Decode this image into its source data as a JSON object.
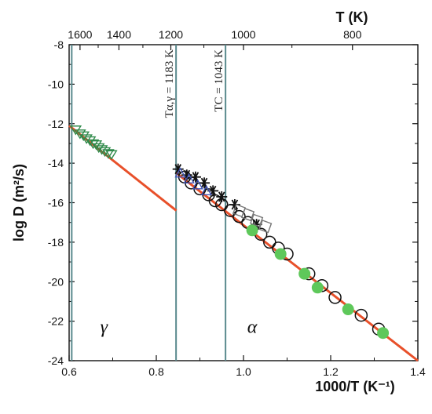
{
  "chart_data": {
    "type": "scatter",
    "xlabel": "1000/T (K⁻¹)",
    "ylabel": "log D (m²/s)",
    "top_axis_label": "T (K)",
    "xlim": [
      0.6,
      1.4
    ],
    "ylim": [
      -24,
      -8
    ],
    "x_ticks": [
      0.6,
      0.8,
      1.0,
      1.2,
      1.4
    ],
    "x_tick_labels": [
      "0.6",
      "0.8",
      "1.0",
      "1.2",
      "1.4"
    ],
    "y_ticks": [
      -24,
      -22,
      -20,
      -18,
      -16,
      -14,
      -12,
      -10,
      -8
    ],
    "y_tick_labels": [
      "-24",
      "-22",
      "-20",
      "-18",
      "-16",
      "-14",
      "-12",
      "-10",
      "-8"
    ],
    "top_ticks_T": [
      1600,
      1400,
      1200,
      1000,
      800
    ],
    "top_tick_labels": [
      "1600",
      "1400",
      "1200",
      "1000",
      "800"
    ],
    "vertical_lines": [
      {
        "x": 0.606,
        "label": ""
      },
      {
        "x": 0.8453,
        "label": "Tα,γ = 1183 K"
      },
      {
        "x": 0.9588,
        "label": "TC = 1043 K"
      }
    ],
    "phase_labels": [
      {
        "text": "γ",
        "x": 0.68,
        "y": -22.6
      },
      {
        "text": "α",
        "x": 1.02,
        "y": -22.6
      }
    ],
    "fit_lines": [
      {
        "name": "",
        "color": "#e8502a",
        "points": [
          [
            0.6,
            -12.1
          ],
          [
            0.846,
            -16.4
          ]
        ]
      },
      {
        "name": "",
        "color": "#e8502a",
        "points": [
          [
            0.846,
            -14.5
          ],
          [
            1.4,
            -24.0
          ]
        ]
      }
    ],
    "series": [
      {
        "name": "",
        "marker": "triangle-down",
        "color": "#2f8a4a",
        "points": [
          [
            0.615,
            -12.3
          ],
          [
            0.625,
            -12.5
          ],
          [
            0.633,
            -12.6
          ],
          [
            0.64,
            -12.75
          ],
          [
            0.648,
            -12.85
          ],
          [
            0.655,
            -13.0
          ],
          [
            0.662,
            -13.05
          ],
          [
            0.668,
            -13.2
          ],
          [
            0.675,
            -13.3
          ],
          [
            0.682,
            -13.4
          ],
          [
            0.69,
            -13.5
          ],
          [
            0.697,
            -13.55
          ]
        ]
      },
      {
        "name": "",
        "marker": "asterisk",
        "color": "#111111",
        "points": [
          [
            0.85,
            -14.3
          ],
          [
            0.87,
            -14.6
          ],
          [
            0.89,
            -14.7
          ],
          [
            0.91,
            -15.0
          ],
          [
            0.93,
            -15.4
          ],
          [
            0.95,
            -15.7
          ],
          [
            0.98,
            -16.1
          ],
          [
            1.03,
            -17.1
          ]
        ]
      },
      {
        "name": "",
        "marker": "open-circle",
        "color": "#111111",
        "points": [
          [
            0.865,
            -14.7
          ],
          [
            0.88,
            -15.0
          ],
          [
            0.9,
            -15.3
          ],
          [
            0.92,
            -15.6
          ],
          [
            0.935,
            -15.9
          ],
          [
            0.95,
            -16.1
          ],
          [
            0.97,
            -16.4
          ],
          [
            0.99,
            -16.7
          ],
          [
            1.01,
            -17.0
          ],
          [
            1.04,
            -17.6
          ],
          [
            1.06,
            -18.0
          ],
          [
            1.08,
            -18.3
          ],
          [
            1.1,
            -18.6
          ],
          [
            1.15,
            -19.6
          ],
          [
            1.18,
            -20.2
          ],
          [
            1.21,
            -20.8
          ],
          [
            1.27,
            -21.7
          ],
          [
            1.31,
            -22.4
          ]
        ]
      },
      {
        "name": "",
        "marker": "filled-circle",
        "color": "#5ec85a",
        "points": [
          [
            1.02,
            -17.4
          ],
          [
            1.085,
            -18.6
          ],
          [
            1.14,
            -19.6
          ],
          [
            1.17,
            -20.3
          ],
          [
            1.24,
            -21.4
          ],
          [
            1.32,
            -22.6
          ]
        ]
      },
      {
        "name": "",
        "marker": "open-square",
        "color": "#777777",
        "points": [
          [
            0.99,
            -16.4
          ],
          [
            1.01,
            -16.6
          ],
          [
            1.03,
            -16.9
          ],
          [
            1.05,
            -17.2
          ]
        ]
      },
      {
        "name": "",
        "marker": "open-triangle",
        "color": "#3b4fb5",
        "points": [
          [
            0.855,
            -14.5
          ],
          [
            0.875,
            -14.8
          ],
          [
            0.895,
            -15.1
          ],
          [
            0.915,
            -15.4
          ]
        ]
      }
    ]
  }
}
